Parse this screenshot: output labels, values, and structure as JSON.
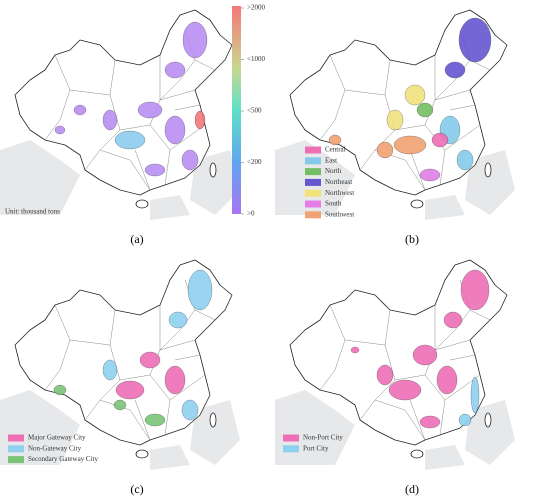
{
  "panels": [
    {
      "label": "(a)",
      "unit": "Unit: thousand tons",
      "colorbar": {
        "labels": [
          ">2000",
          "<1000",
          "<500",
          "<200",
          ">0"
        ]
      }
    },
    {
      "label": "(b)",
      "legend": [
        {
          "name": "Central",
          "color": "#ee6fb6"
        },
        {
          "name": "East",
          "color": "#84cbeb"
        },
        {
          "name": "North",
          "color": "#74bf63"
        },
        {
          "name": "Northeast",
          "color": "#6656d0"
        },
        {
          "name": "Northwest",
          "color": "#f1e27c"
        },
        {
          "name": "South",
          "color": "#e27ee6"
        },
        {
          "name": "Southwest",
          "color": "#f0a272"
        }
      ]
    },
    {
      "label": "(c)",
      "legend": [
        {
          "name": "Major Gateway City",
          "color": "#ee6fb6"
        },
        {
          "name": "Non-Gateway City",
          "color": "#8fd0f0"
        },
        {
          "name": "Secondary Gateway City",
          "color": "#7cc576"
        }
      ]
    },
    {
      "label": "(d)",
      "legend": [
        {
          "name": "Non-Port City",
          "color": "#ee6fb6"
        },
        {
          "name": "Port City",
          "color": "#8fd0f0"
        }
      ]
    }
  ]
}
